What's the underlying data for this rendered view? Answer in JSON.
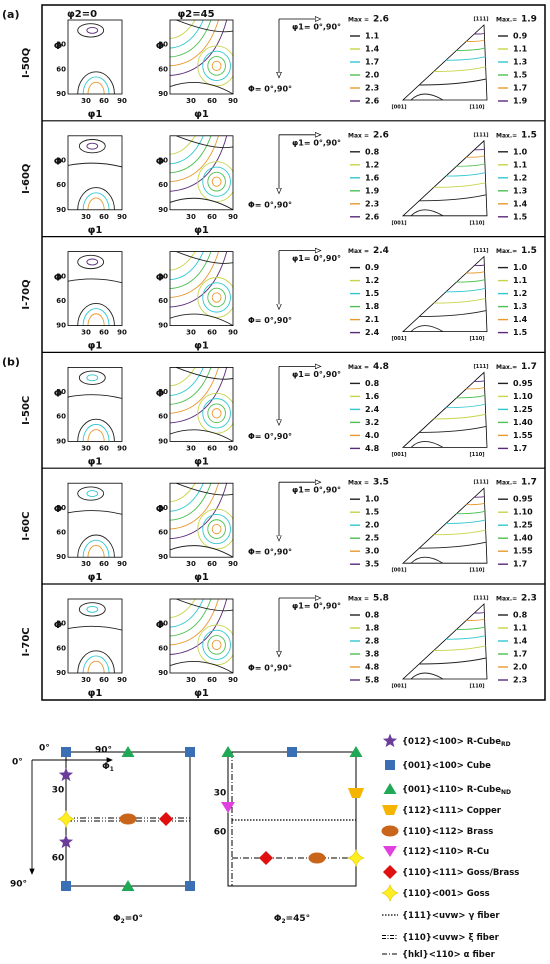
{
  "panels": {
    "headers": [
      "φ2=0",
      "φ2=45"
    ],
    "axis_y": "Φ",
    "axis_x": "φ1",
    "ticks": [
      "30",
      "60",
      "90"
    ],
    "arrow_h": "φ1= 0°,90°",
    "arrow_v": "Φ= 0°,90°",
    "ipf_poles": [
      "[111]",
      "[001]",
      "[110]"
    ]
  },
  "groups": [
    {
      "label": "(a)",
      "rows": [
        {
          "label": "I-50Q",
          "odf": {
            "max_label": "Max =",
            "max": "2.6",
            "levels": [
              "1.1",
              "1.4",
              "1.7",
              "2.0",
              "2.3",
              "2.6"
            ]
          },
          "ipf": {
            "max_label": "Max.=",
            "max": "1.9",
            "levels": [
              "0.9",
              "1.1",
              "1.3",
              "1.5",
              "1.7",
              "1.9"
            ]
          }
        },
        {
          "label": "I-60Q",
          "odf": {
            "max_label": "Max =",
            "max": "2.6",
            "levels": [
              "0.8",
              "1.2",
              "1.6",
              "1.9",
              "2.3",
              "2.6"
            ]
          },
          "ipf": {
            "max_label": "Max.=",
            "max": "1.5",
            "levels": [
              "1.0",
              "1.1",
              "1.2",
              "1.3",
              "1.4",
              "1.5"
            ]
          }
        },
        {
          "label": "I-70Q",
          "odf": {
            "max_label": "Max =",
            "max": "2.4",
            "levels": [
              "0.9",
              "1.2",
              "1.5",
              "1.8",
              "2.1",
              "2.4"
            ]
          },
          "ipf": {
            "max_label": "Max.=",
            "max": "1.5",
            "levels": [
              "1.0",
              "1.1",
              "1.2",
              "1.3",
              "1.4",
              "1.5"
            ]
          }
        }
      ]
    },
    {
      "label": "(b)",
      "rows": [
        {
          "label": "I-50C",
          "odf": {
            "max_label": "Max =",
            "max": "4.8",
            "levels": [
              "0.8",
              "1.6",
              "2.4",
              "3.2",
              "4.0",
              "4.8"
            ]
          },
          "ipf": {
            "max_label": "Max.=",
            "max": "1.7",
            "levels": [
              "0.95",
              "1.10",
              "1.25",
              "1.40",
              "1.55",
              "1.7"
            ]
          }
        },
        {
          "label": "I-60C",
          "odf": {
            "max_label": "Max =",
            "max": "3.5",
            "levels": [
              "1.0",
              "1.5",
              "2.0",
              "2.5",
              "3.0",
              "3.5"
            ]
          },
          "ipf": {
            "max_label": "Max.=",
            "max": "1.7",
            "levels": [
              "0.95",
              "1.10",
              "1.25",
              "1.40",
              "1.55",
              "1.7"
            ]
          }
        },
        {
          "label": "I-70C",
          "odf": {
            "max_label": "Max =",
            "max": "5.8",
            "levels": [
              "0.8",
              "1.8",
              "2.8",
              "3.8",
              "4.8",
              "5.8"
            ]
          },
          "ipf": {
            "max_label": "Max.=",
            "max": "2.3",
            "levels": [
              "0.8",
              "1.1",
              "1.4",
              "1.7",
              "2.0",
              "2.3"
            ]
          }
        }
      ]
    }
  ],
  "schematic": {
    "axis_x_start": "0°",
    "axis_x_end": "90°",
    "axis_x": "Φ",
    "axis_x_sub": "1",
    "axis_y_start": "0°",
    "axis_y_end": "90°",
    "left": {
      "y_ticks": [
        "30",
        "60"
      ],
      "caption": "Φ",
      "caption_sub": "2",
      "caption_rest": "=0°"
    },
    "right": {
      "y_ticks": [
        "30",
        "60"
      ],
      "caption": "Φ",
      "caption_sub": "2",
      "caption_rest": "=45°"
    },
    "legend": [
      {
        "label": "{012}<100> R-Cube",
        "sub": "RD",
        "marker": "star",
        "color": "#6a3d9a"
      },
      {
        "label": "{001}<100> Cube",
        "marker": "square",
        "color": "#3a6fb5"
      },
      {
        "label": "{001}<110> R-Cube",
        "sub": "ND",
        "marker": "triangle",
        "color": "#1fa855"
      },
      {
        "label": "{112}<111> Copper",
        "marker": "trapezoid",
        "color": "#f5b400"
      },
      {
        "label": "{110}<112> Brass",
        "marker": "ellipse",
        "color": "#c8651b"
      },
      {
        "label": "{112}<110> R-Cu",
        "marker": "triangle-down",
        "color": "#e040e0"
      },
      {
        "label": "{110}<111> Goss/Brass",
        "marker": "diamond",
        "color": "#e01010"
      },
      {
        "label": "{110}<001> Goss",
        "marker": "sparkle",
        "color": "#ffee22"
      },
      {
        "label": "{111}<uvw> γ fiber",
        "marker": "dotted",
        "color": "#000000"
      },
      {
        "label": "{110}<uvw> ξ fiber",
        "marker": "dash-dot-dot",
        "color": "#000000"
      },
      {
        "label": "{hkl}<110> α fiber",
        "marker": "dash-dot",
        "color": "#000000"
      }
    ]
  }
}
